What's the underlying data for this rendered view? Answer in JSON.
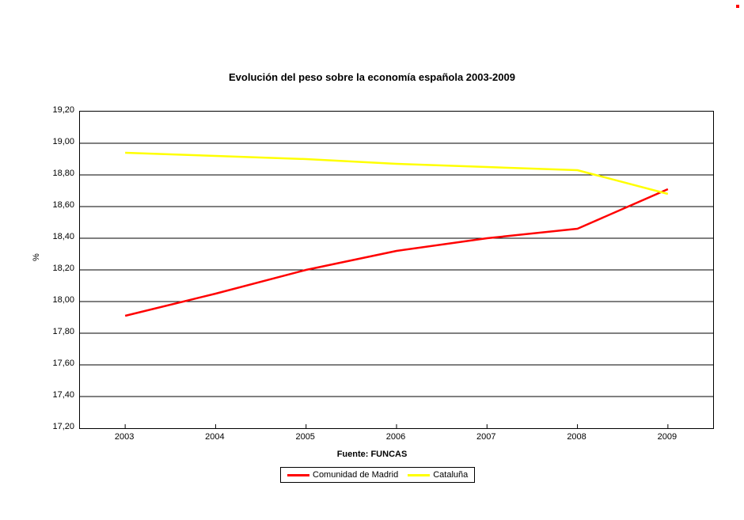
{
  "chart": {
    "type": "line",
    "title": "Evolución del peso sobre la economía española 2003-2009",
    "source_label": "Fuente: FUNCAS",
    "y_axis_label": "%",
    "background_color": "#ffffff",
    "plot_border_color": "#000000",
    "grid_color": "#000000",
    "grid_line_width": 1,
    "title_fontsize": 13,
    "label_fontsize": 11,
    "tick_fontsize": 11,
    "x_categories": [
      "2003",
      "2004",
      "2005",
      "2006",
      "2007",
      "2008",
      "2009"
    ],
    "ylim": [
      17.2,
      19.2
    ],
    "ytick_step": 0.2,
    "ytick_labels": [
      "17,20",
      "17,40",
      "17,60",
      "17,80",
      "18,00",
      "18,20",
      "18,40",
      "18,60",
      "18,80",
      "19,00",
      "19,20"
    ],
    "series": [
      {
        "name": "Comunidad de Madrid",
        "color": "#ff0000",
        "line_width": 2.5,
        "values": [
          17.91,
          18.05,
          18.2,
          18.32,
          18.4,
          18.46,
          18.71
        ]
      },
      {
        "name": "Cataluña",
        "color": "#ffff00",
        "line_width": 2.5,
        "values": [
          18.94,
          18.92,
          18.9,
          18.87,
          18.85,
          18.83,
          18.68
        ]
      }
    ]
  }
}
